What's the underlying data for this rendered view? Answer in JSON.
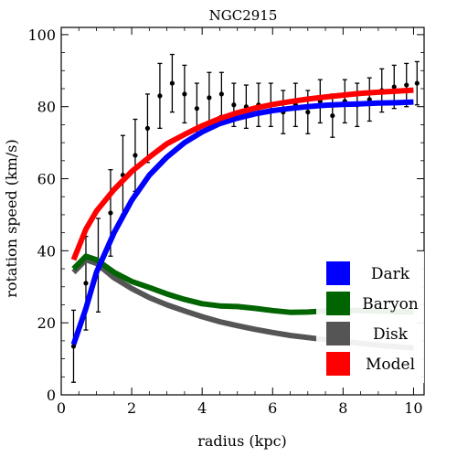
{
  "chart_data": {
    "type": "line",
    "title": "NGC2915",
    "xlabel": "radius (kpc)",
    "ylabel": "rotation speed (km/s)",
    "xlim": [
      0,
      10.3
    ],
    "ylim": [
      0,
      102
    ],
    "x_ticks": [
      0,
      2,
      4,
      6,
      8,
      10
    ],
    "y_ticks": [
      0,
      20,
      40,
      60,
      80,
      100
    ],
    "x_tick_labels": [
      "0",
      "2",
      "4",
      "6",
      "8",
      "10"
    ],
    "y_tick_labels": [
      "0",
      "20",
      "40",
      "60",
      "80",
      "100"
    ],
    "grid": false,
    "legend_position": "bottom-right",
    "series": [
      {
        "name": "Dark",
        "color": "#0000ff",
        "x": [
          0.35,
          0.7,
          1.0,
          1.5,
          2.0,
          2.5,
          3.0,
          3.5,
          4.0,
          4.5,
          5.0,
          5.5,
          6.0,
          6.5,
          7.0,
          7.5,
          8.0,
          8.5,
          9.0,
          9.5,
          10.0
        ],
        "y": [
          14,
          24,
          34,
          45,
          54,
          61,
          66,
          70,
          73,
          75.3,
          76.8,
          78,
          78.9,
          79.5,
          80,
          80.4,
          80.6,
          80.8,
          81,
          81.1,
          81.3
        ]
      },
      {
        "name": "Baryon",
        "color": "#006400",
        "x": [
          0.35,
          0.7,
          1.0,
          1.5,
          2.0,
          2.5,
          3.0,
          3.5,
          4.0,
          4.5,
          5.0,
          5.5,
          6.0,
          6.5,
          7.0,
          7.5,
          8.0,
          8.5,
          9.0,
          9.5,
          10.0
        ],
        "y": [
          35,
          38.5,
          37.5,
          34,
          31.5,
          29.8,
          28,
          26.5,
          25.3,
          24.7,
          24.5,
          24,
          23.4,
          22.9,
          23,
          23.3,
          23.5,
          23.4,
          23.3,
          23.1,
          23.0
        ]
      },
      {
        "name": "Disk",
        "color": "#555555",
        "x": [
          0.35,
          0.7,
          1.0,
          1.5,
          2.0,
          2.5,
          3.0,
          3.5,
          4.0,
          4.5,
          5.0,
          5.5,
          6.0,
          6.5,
          7.0,
          7.5,
          8.0,
          8.5,
          9.0,
          9.5,
          10.0
        ],
        "y": [
          34,
          37.5,
          36.5,
          32.5,
          29.5,
          27,
          25,
          23.3,
          21.7,
          20.3,
          19.2,
          18.2,
          17.3,
          16.5,
          15.9,
          15.3,
          14.8,
          14.3,
          13.8,
          13.4,
          13.0
        ]
      },
      {
        "name": "Model",
        "color": "#ff0000",
        "x": [
          0.35,
          0.7,
          1.0,
          1.5,
          2.0,
          2.5,
          3.0,
          3.5,
          4.0,
          4.5,
          5.0,
          5.5,
          6.0,
          6.5,
          7.0,
          7.5,
          8.0,
          8.5,
          9.0,
          9.5,
          10.0
        ],
        "y": [
          37.5,
          46,
          51,
          57,
          62,
          66,
          69.7,
          72.3,
          74.7,
          76.7,
          78.3,
          79.6,
          80.6,
          81.4,
          82.1,
          82.7,
          83.2,
          83.7,
          84,
          84.3,
          84.6
        ]
      }
    ],
    "observed": {
      "name": "data",
      "color": "#000000",
      "points": [
        {
          "x": 0.35,
          "y": 13.5,
          "err": 10
        },
        {
          "x": 0.7,
          "y": 31,
          "err": 13
        },
        {
          "x": 1.05,
          "y": 36,
          "err": 13
        },
        {
          "x": 1.4,
          "y": 50.5,
          "err": 12
        },
        {
          "x": 1.75,
          "y": 61,
          "err": 11
        },
        {
          "x": 2.1,
          "y": 66.5,
          "err": 10
        },
        {
          "x": 2.45,
          "y": 74,
          "err": 9.5
        },
        {
          "x": 2.8,
          "y": 83,
          "err": 9
        },
        {
          "x": 3.15,
          "y": 86.5,
          "err": 8
        },
        {
          "x": 3.5,
          "y": 83.5,
          "err": 8
        },
        {
          "x": 3.85,
          "y": 79.5,
          "err": 7
        },
        {
          "x": 4.2,
          "y": 82.5,
          "err": 7
        },
        {
          "x": 4.55,
          "y": 83.5,
          "err": 6
        },
        {
          "x": 4.9,
          "y": 80.5,
          "err": 6
        },
        {
          "x": 5.25,
          "y": 80,
          "err": 6
        },
        {
          "x": 5.6,
          "y": 80.5,
          "err": 6
        },
        {
          "x": 5.95,
          "y": 80.5,
          "err": 6
        },
        {
          "x": 6.3,
          "y": 78.5,
          "err": 6
        },
        {
          "x": 6.65,
          "y": 80.5,
          "err": 6
        },
        {
          "x": 7.0,
          "y": 78.5,
          "err": 6
        },
        {
          "x": 7.35,
          "y": 81.5,
          "err": 6
        },
        {
          "x": 7.7,
          "y": 77.5,
          "err": 6
        },
        {
          "x": 8.05,
          "y": 81.5,
          "err": 6
        },
        {
          "x": 8.4,
          "y": 80.5,
          "err": 6
        },
        {
          "x": 8.75,
          "y": 82,
          "err": 6
        },
        {
          "x": 9.1,
          "y": 84.5,
          "err": 6
        },
        {
          "x": 9.45,
          "y": 85.5,
          "err": 6
        },
        {
          "x": 9.8,
          "y": 86,
          "err": 6
        },
        {
          "x": 10.1,
          "y": 86.5,
          "err": 6
        }
      ]
    }
  }
}
